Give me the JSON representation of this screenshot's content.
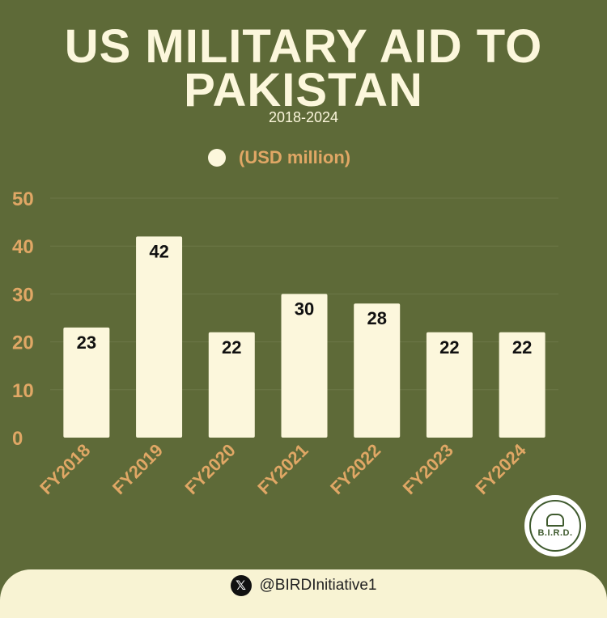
{
  "header": {
    "title_line1": "US MILITARY AID TO",
    "title_line2": "PAKISTAN",
    "subtitle": "2018-2024"
  },
  "legend": {
    "label": "(USD million)"
  },
  "colors": {
    "background": "#5e6a38",
    "bar": "#fcf7dc",
    "axis_label": "#e0a765",
    "gridline": "#6c7747",
    "bar_label": "#111111"
  },
  "chart_data": {
    "type": "bar",
    "title": "US MILITARY AID TO PAKISTAN",
    "subtitle": "2018-2024",
    "categories": [
      "FY2018",
      "FY2019",
      "FY2020",
      "FY2021",
      "FY2022",
      "FY2023",
      "FY2024"
    ],
    "series": [
      {
        "name": "(USD million)",
        "values": [
          23,
          42,
          22,
          30,
          28,
          22,
          22
        ]
      }
    ],
    "ylim": [
      0,
      50
    ],
    "yticks": [
      0,
      10,
      20,
      30,
      40,
      50
    ],
    "xlabel": "",
    "ylabel": "",
    "grid": true,
    "legend_position": "top-center"
  },
  "footer": {
    "handle": "@BIRDInitiative1",
    "icon": "x-icon"
  },
  "logo": {
    "text": "B.I.R.D."
  }
}
